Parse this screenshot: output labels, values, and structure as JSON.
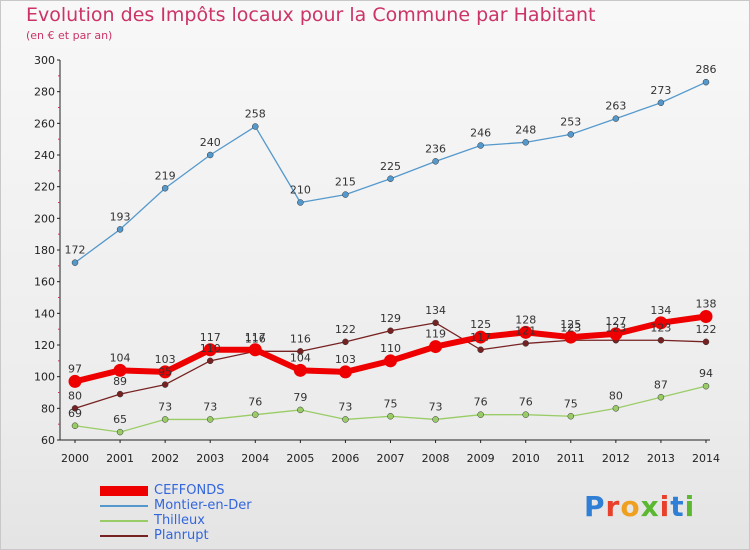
{
  "title": "Evolution des Impôts locaux pour la Commune par Habitant",
  "subtitle": "(en € et par an)",
  "logo": {
    "letters": [
      "P",
      "r",
      "o",
      "x",
      "i",
      "t",
      "i"
    ],
    "colors": [
      "#2f7fd6",
      "#e8402a",
      "#f0a020",
      "#5bb830",
      "#e8402a",
      "#2f7fd6",
      "#5bb830"
    ]
  },
  "chart_data": {
    "type": "line",
    "x": [
      2000,
      2001,
      2002,
      2003,
      2004,
      2005,
      2006,
      2007,
      2008,
      2009,
      2010,
      2011,
      2012,
      2013,
      2014
    ],
    "ylim": [
      60,
      300
    ],
    "yticks": [
      60,
      80,
      100,
      120,
      140,
      160,
      180,
      200,
      220,
      240,
      260,
      280,
      300
    ],
    "grid": false,
    "legend_position": "bottom-left",
    "series": [
      {
        "name": "CEFFONDS",
        "color": "#ee0000",
        "values": [
          97,
          104,
          103,
          117,
          117,
          104,
          103,
          110,
          119,
          125,
          128,
          125,
          127,
          134,
          138
        ]
      },
      {
        "name": "Montier-en-Der",
        "color": "#5599cc",
        "values": [
          172,
          193,
          219,
          240,
          258,
          210,
          215,
          225,
          236,
          246,
          248,
          253,
          263,
          273,
          286
        ]
      },
      {
        "name": "Thilleux",
        "color": "#99cc66",
        "values": [
          69,
          65,
          73,
          73,
          76,
          79,
          73,
          75,
          73,
          76,
          76,
          75,
          80,
          87,
          94
        ]
      },
      {
        "name": "Planrupt",
        "color": "#772222",
        "values": [
          80,
          89,
          95,
          110,
          116,
          116,
          122,
          129,
          134,
          117,
          121,
          123,
          123,
          123,
          122
        ]
      }
    ]
  }
}
